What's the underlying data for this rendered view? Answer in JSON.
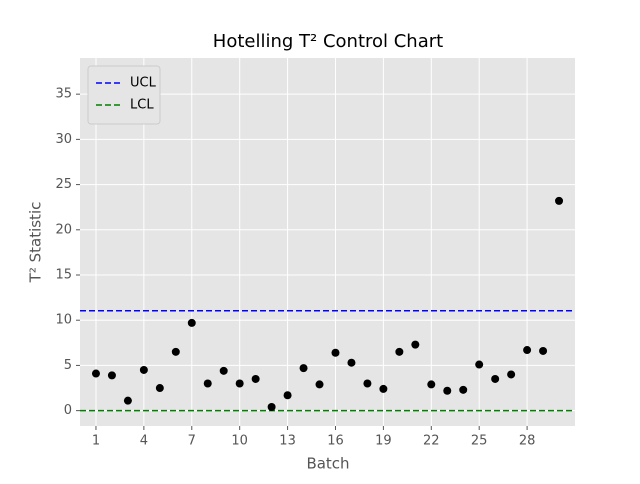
{
  "chart_data": {
    "type": "scatter",
    "title": "Hotelling T² Control Chart",
    "xlabel": "Batch",
    "ylabel": "T² Statistic",
    "x": [
      1,
      2,
      3,
      4,
      5,
      6,
      7,
      8,
      9,
      10,
      11,
      12,
      13,
      14,
      15,
      16,
      17,
      18,
      19,
      20,
      21,
      22,
      23,
      24,
      25,
      26,
      27,
      28,
      29,
      30
    ],
    "series": [
      {
        "color": "#000000",
        "values": [
          4.1,
          3.9,
          1.1,
          4.5,
          2.5,
          6.5,
          9.7,
          3.0,
          4.4,
          3.0,
          3.5,
          0.4,
          1.7,
          4.7,
          2.9,
          6.4,
          5.3,
          3.0,
          2.4,
          6.5,
          7.3,
          2.9,
          2.2,
          2.3,
          5.1,
          3.5,
          4.0,
          6.7,
          6.6,
          23.2
        ]
      }
    ],
    "hlines": [
      {
        "name": "UCL",
        "value": 11.04,
        "color": "#0000ff"
      },
      {
        "name": "LCL",
        "value": 0,
        "color": "#008000"
      }
    ],
    "xlim": [
      0,
      31
    ],
    "xticks": [
      1,
      4,
      7,
      10,
      13,
      16,
      19,
      22,
      25,
      28
    ],
    "ylim": [
      -1.7,
      39
    ],
    "yticks": [
      0,
      5,
      10,
      15,
      20,
      25,
      30,
      35
    ],
    "grid": true,
    "legend": "upper left"
  }
}
